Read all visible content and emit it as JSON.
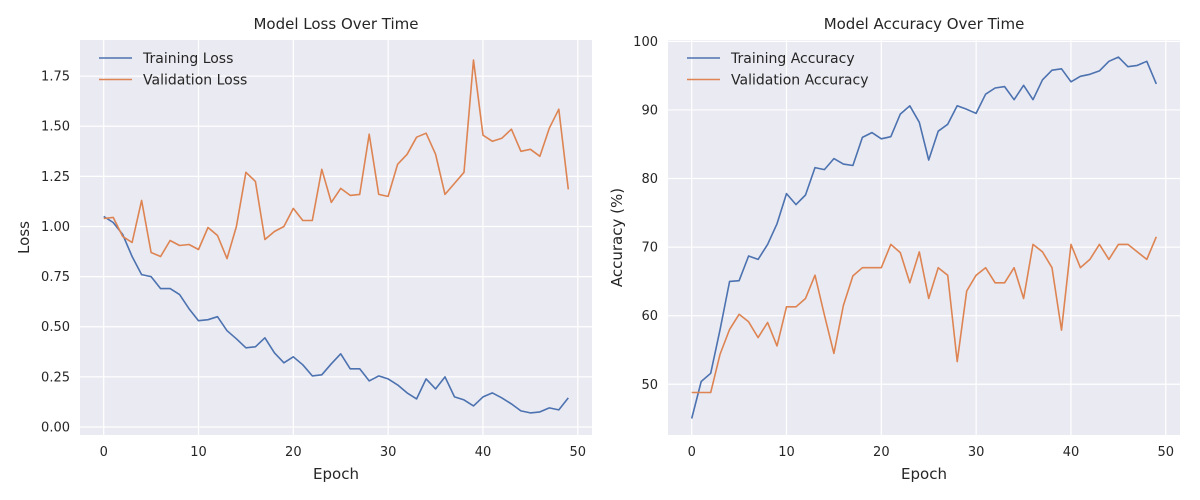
{
  "chart_data": [
    {
      "type": "line",
      "title": "Model Loss Over Time",
      "xlabel": "Epoch",
      "ylabel": "Loss",
      "xlim": [
        -2.5,
        51.5
      ],
      "ylim": [
        -0.04,
        1.93
      ],
      "xticks": [
        0,
        10,
        20,
        30,
        40,
        50
      ],
      "yticks": [
        0.0,
        0.25,
        0.5,
        0.75,
        1.0,
        1.25,
        1.5,
        1.75
      ],
      "ytick_labels": [
        "0.00",
        "0.25",
        "0.50",
        "0.75",
        "1.00",
        "1.25",
        "1.50",
        "1.75"
      ],
      "legend_position": "top-left",
      "x": [
        0,
        1,
        2,
        3,
        4,
        5,
        6,
        7,
        8,
        9,
        10,
        11,
        12,
        13,
        14,
        15,
        16,
        17,
        18,
        19,
        20,
        21,
        22,
        23,
        24,
        25,
        26,
        27,
        28,
        29,
        30,
        31,
        32,
        33,
        34,
        35,
        36,
        37,
        38,
        39,
        40,
        41,
        42,
        43,
        44,
        45,
        46,
        47,
        48,
        49
      ],
      "series": [
        {
          "name": "Training Loss",
          "color": "#4c72b0",
          "values": [
            1.05,
            1.02,
            0.96,
            0.85,
            0.76,
            0.75,
            0.69,
            0.69,
            0.66,
            0.59,
            0.53,
            0.535,
            0.55,
            0.48,
            0.44,
            0.395,
            0.4,
            0.445,
            0.37,
            0.32,
            0.35,
            0.31,
            0.255,
            0.26,
            0.315,
            0.365,
            0.29,
            0.29,
            0.23,
            0.255,
            0.24,
            0.21,
            0.17,
            0.14,
            0.24,
            0.19,
            0.25,
            0.15,
            0.135,
            0.105,
            0.15,
            0.17,
            0.145,
            0.115,
            0.08,
            0.07,
            0.075,
            0.095,
            0.085,
            0.145
          ]
        },
        {
          "name": "Validation Loss",
          "color": "#dd8452",
          "values": [
            1.04,
            1.045,
            0.95,
            0.92,
            1.13,
            0.87,
            0.85,
            0.93,
            0.905,
            0.91,
            0.885,
            0.995,
            0.955,
            0.84,
            1.0,
            1.27,
            1.225,
            0.935,
            0.975,
            1.0,
            1.09,
            1.03,
            1.03,
            1.285,
            1.12,
            1.19,
            1.155,
            1.16,
            1.46,
            1.16,
            1.15,
            1.31,
            1.36,
            1.445,
            1.465,
            1.36,
            1.16,
            1.215,
            1.27,
            1.83,
            1.455,
            1.425,
            1.44,
            1.485,
            1.375,
            1.385,
            1.35,
            1.49,
            1.585,
            1.185
          ]
        }
      ]
    },
    {
      "type": "line",
      "title": "Model Accuracy Over Time",
      "xlabel": "Epoch",
      "ylabel": "Accuracy (%)",
      "xlim": [
        -2.5,
        51.5
      ],
      "ylim": [
        42.6,
        100.2
      ],
      "xticks": [
        0,
        10,
        20,
        30,
        40,
        50
      ],
      "yticks": [
        50,
        60,
        70,
        80,
        90,
        100
      ],
      "ytick_labels": [
        "50",
        "60",
        "70",
        "80",
        "90",
        "100"
      ],
      "legend_position": "top-left",
      "x": [
        0,
        1,
        2,
        3,
        4,
        5,
        6,
        7,
        8,
        9,
        10,
        11,
        12,
        13,
        14,
        15,
        16,
        17,
        18,
        19,
        20,
        21,
        22,
        23,
        24,
        25,
        26,
        27,
        28,
        29,
        30,
        31,
        32,
        33,
        34,
        35,
        36,
        37,
        38,
        39,
        40,
        41,
        42,
        43,
        44,
        45,
        46,
        47,
        48,
        49
      ],
      "series": [
        {
          "name": "Training Accuracy",
          "color": "#4c72b0",
          "values": [
            45.0,
            50.4,
            51.6,
            58.0,
            65.0,
            65.1,
            68.7,
            68.2,
            70.4,
            73.4,
            77.8,
            76.2,
            77.6,
            81.6,
            81.3,
            82.9,
            82.1,
            81.9,
            86.0,
            86.7,
            85.8,
            86.1,
            89.4,
            90.6,
            88.2,
            82.7,
            86.9,
            87.9,
            90.6,
            90.1,
            89.5,
            92.3,
            93.2,
            93.4,
            91.5,
            93.6,
            91.5,
            94.4,
            95.8,
            96.0,
            94.1,
            94.9,
            95.2,
            95.7,
            97.1,
            97.7,
            96.3,
            96.5,
            97.1,
            93.8
          ]
        },
        {
          "name": "Validation Accuracy",
          "color": "#dd8452",
          "values": [
            48.8,
            48.8,
            48.8,
            54.4,
            58.0,
            60.2,
            59.1,
            56.8,
            59.0,
            55.6,
            61.3,
            61.3,
            62.5,
            65.9,
            60.1,
            54.5,
            61.5,
            65.8,
            67.0,
            67.0,
            67.0,
            70.4,
            69.2,
            64.8,
            69.3,
            62.5,
            67.0,
            65.9,
            53.3,
            63.6,
            65.9,
            67.0,
            64.8,
            64.8,
            67.0,
            62.5,
            70.4,
            69.3,
            67.0,
            57.9,
            70.4,
            67.0,
            68.2,
            70.4,
            68.2,
            70.4,
            70.4,
            69.3,
            68.2,
            71.5
          ]
        }
      ]
    }
  ]
}
